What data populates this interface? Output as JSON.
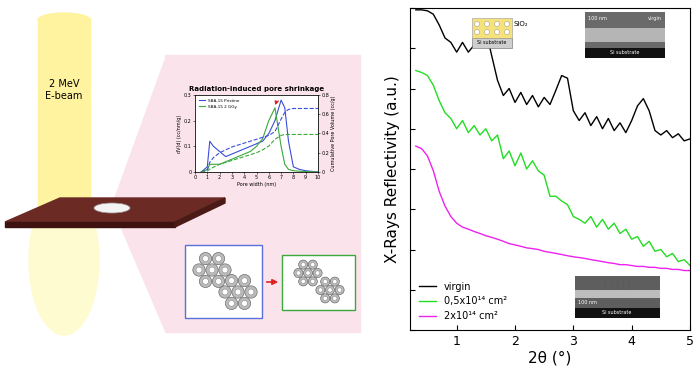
{
  "diagram": {
    "beam_label": "2 MeV\nE-beam"
  },
  "chart_data": [
    {
      "type": "line",
      "title": "Radiation-induced pore shrinkage",
      "x_label": "Pore width (nm)",
      "y_label": "dV(d) (cc/nm/g)",
      "y2_label": "Cumulative Pore Volume (cc/g)",
      "x": [
        0.5,
        1,
        1.2,
        1.5,
        2,
        2.5,
        3,
        3.5,
        4,
        4.5,
        5,
        5.5,
        6,
        6.5,
        7,
        7.3,
        7.6,
        8,
        8.5,
        9,
        10
      ],
      "series": [
        {
          "name": "SBA-15 Pristine",
          "color": "#3a4fd8",
          "line_style": "solid",
          "values": [
            0,
            0.02,
            0.12,
            0.1,
            0.08,
            0.06,
            0.07,
            0.08,
            0.09,
            0.1,
            0.11,
            0.12,
            0.15,
            0.2,
            0.28,
            0.25,
            0.12,
            0.02,
            0.01,
            0.005,
            0
          ]
        },
        {
          "name": "SBA-15 2 GGy",
          "color": "#3aa83a",
          "line_style": "solid",
          "values": [
            0,
            0.01,
            0.03,
            0.03,
            0.03,
            0.04,
            0.05,
            0.06,
            0.07,
            0.08,
            0.1,
            0.13,
            0.2,
            0.25,
            0.1,
            0.03,
            0.01,
            0.005,
            0.003,
            0.002,
            0
          ]
        },
        {
          "color": "#3a4fd8",
          "line_style": "dashed",
          "axis": "y2",
          "values": [
            0,
            0.02,
            0.1,
            0.15,
            0.2,
            0.23,
            0.26,
            0.28,
            0.3,
            0.32,
            0.34,
            0.36,
            0.38,
            0.42,
            0.55,
            0.62,
            0.65,
            0.66,
            0.66,
            0.66,
            0.66
          ]
        },
        {
          "color": "#3aa83a",
          "line_style": "dashed",
          "axis": "y2",
          "values": [
            0,
            0.01,
            0.03,
            0.05,
            0.08,
            0.1,
            0.12,
            0.14,
            0.16,
            0.18,
            0.2,
            0.23,
            0.27,
            0.34,
            0.38,
            0.39,
            0.39,
            0.39,
            0.39,
            0.39,
            0.39
          ]
        }
      ],
      "xlim": [
        0,
        10
      ],
      "xticks": [
        0,
        1,
        2,
        3,
        4,
        5,
        6,
        7,
        8,
        9,
        10
      ],
      "ylim": [
        0,
        0.3
      ],
      "yticks": [
        0,
        0.1,
        0.2,
        0.3
      ],
      "y2lim": [
        0,
        0.8
      ],
      "y2ticks": [
        0,
        0.2,
        0.4,
        0.6,
        0.8
      ],
      "legend": "upper left"
    },
    {
      "type": "line",
      "x_label": "2θ (°)",
      "y_label": "X-Rays Reflectivity (a.u.)",
      "x": [
        0.3,
        0.4,
        0.5,
        0.6,
        0.7,
        0.8,
        0.9,
        1.0,
        1.1,
        1.2,
        1.3,
        1.4,
        1.5,
        1.6,
        1.7,
        1.8,
        1.9,
        2.0,
        2.1,
        2.2,
        2.3,
        2.4,
        2.5,
        2.6,
        2.7,
        2.8,
        2.9,
        3.0,
        3.1,
        3.2,
        3.3,
        3.4,
        3.5,
        3.6,
        3.7,
        3.8,
        3.9,
        4.0,
        4.1,
        4.2,
        4.3,
        4.4,
        4.5,
        4.6,
        4.7,
        4.8,
        4.9,
        5.0
      ],
      "series": [
        {
          "name": "virgin",
          "color": "#000000",
          "values": [
            0.9,
            0.9,
            0.85,
            0.7,
            0.38,
            0.18,
            0.14,
            0.08,
            0.14,
            0.08,
            0.12,
            0.25,
            0.28,
            0.066,
            0.016,
            0.0067,
            0.01,
            0.0045,
            0.008,
            0.004,
            0.0067,
            0.0035,
            0.006,
            0.004,
            0.009,
            0.021,
            0.018,
            0.0028,
            0.0016,
            0.0025,
            0.0012,
            0.002,
            0.001,
            0.0018,
            0.0009,
            0.0014,
            0.0008,
            0.0016,
            0.0037,
            0.0056,
            0.0028,
            0.0009,
            0.0007,
            0.0009,
            0.0006,
            0.00075,
            0.0005,
            0.00056
          ]
        },
        {
          "name": "0,5x10¹⁴ cm²",
          "color": "#22dd22",
          "values": [
            0.028,
            0.025,
            0.021,
            0.012,
            0.005,
            0.0025,
            0.0018,
            0.001,
            0.0016,
            0.0008,
            0.0012,
            0.0007,
            0.001,
            0.0005,
            0.0007,
            0.00018,
            0.00028,
            0.00012,
            0.00025,
            0.0001,
            0.00016,
            9e-05,
            7e-05,
            2.1e-05,
            2.1e-05,
            1.6e-05,
            1.3e-05,
            6.6e-06,
            5.6e-06,
            4.5e-06,
            6.6e-06,
            3.6e-06,
            5.6e-06,
            3.2e-06,
            4.5e-06,
            2.5e-06,
            3.2e-06,
            1.8e-06,
            2.1e-06,
            1.2e-06,
            1.6e-06,
            9e-07,
            1e-06,
            6.6e-07,
            8e-07,
            5e-07,
            5.6e-07,
            4e-07
          ]
        },
        {
          "name": "2x10¹⁴ cm²",
          "color": "#ee22ee",
          "values": [
            0.00037,
            0.00032,
            0.00021,
            9e-05,
            2.8e-05,
            1.2e-05,
            6.6e-06,
            4.5e-06,
            3.6e-06,
            3.2e-06,
            2.8e-06,
            2.5e-06,
            2.2e-06,
            2e-06,
            1.8e-06,
            1.6e-06,
            1.4e-06,
            1.3e-06,
            1.2e-06,
            1.1e-06,
            1.05e-06,
            1e-06,
            9e-07,
            8.5e-07,
            8e-07,
            7.5e-07,
            7e-07,
            6.6e-07,
            6.3e-07,
            6e-07,
            5.6e-07,
            5.3e-07,
            5e-07,
            4.7e-07,
            4.5e-07,
            4.2e-07,
            4.2e-07,
            4e-07,
            3.8e-07,
            3.8e-07,
            3.6e-07,
            3.6e-07,
            3.4e-07,
            3.4e-07,
            3.2e-07,
            3.2e-07,
            3e-07,
            3e-07
          ]
        }
      ],
      "xlim": [
        0.2,
        5
      ],
      "xticks": [
        1,
        2,
        3,
        4,
        5
      ],
      "ylim": [
        1e-08,
        1
      ],
      "yticks": [
        1e-08,
        1e-07,
        1e-06,
        1e-05,
        0.0001,
        0.001,
        0.01,
        0.1,
        1
      ],
      "log": "y",
      "tick_labels": "x",
      "legend": "lower left",
      "annotations": {
        "schematic": [
          "SiO₂",
          "Si substrate"
        ],
        "sem_virgin": [
          "100 nm",
          "virgin",
          "Si substrate"
        ],
        "sem_irradiated": [
          "100 nm",
          "Si substrate"
        ]
      }
    }
  ]
}
